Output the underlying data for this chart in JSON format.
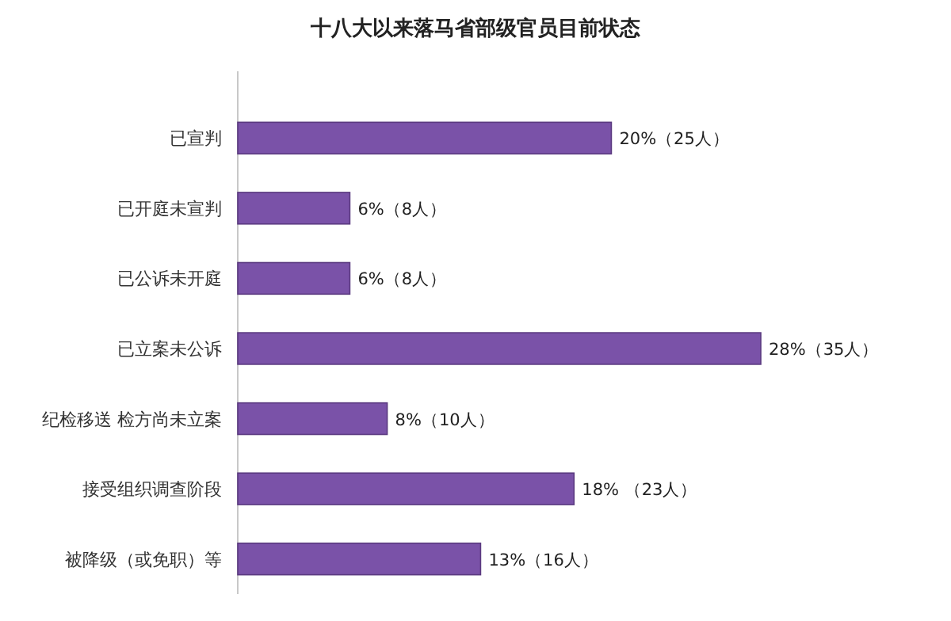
{
  "chart_data": {
    "type": "bar",
    "orientation": "horizontal",
    "title": "十八大以来落马省部级官员目前状态",
    "categories": [
      "已宣判",
      "已开庭未宣判",
      "已公诉未开庭",
      "已立案未公诉",
      "纪检移送 检方尚未立案",
      "接受组织调查阶段",
      "被降级（或免职）等"
    ],
    "values": [
      20,
      6,
      6,
      28,
      8,
      18,
      13
    ],
    "value_labels": [
      "20%（25人）",
      "6%（8人）",
      "6%（8人）",
      "28%（35人）",
      "8%（10人）",
      "18% （23人）",
      "13%（16人）"
    ],
    "color": "#7a52a8",
    "tick_labels": "y"
  }
}
